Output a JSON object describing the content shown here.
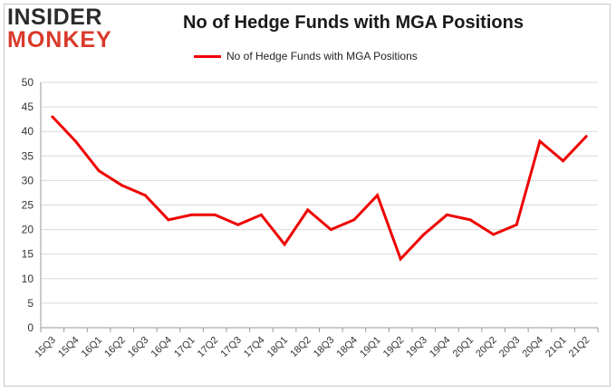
{
  "logo": {
    "line1": "INSIDER",
    "line2": "MONKEY"
  },
  "chart_data": {
    "type": "line",
    "title": "No of Hedge Funds with MGA Positions",
    "xlabel": "",
    "ylabel": "",
    "categories": [
      "15Q3",
      "15Q4",
      "16Q1",
      "16Q2",
      "16Q3",
      "16Q4",
      "17Q1",
      "17Q2",
      "17Q3",
      "17Q4",
      "18Q1",
      "18Q2",
      "18Q3",
      "18Q4",
      "19Q1",
      "19Q2",
      "19Q3",
      "19Q4",
      "20Q1",
      "20Q2",
      "20Q3",
      "20Q4",
      "21Q1",
      "21Q2"
    ],
    "series": [
      {
        "name": "No of Hedge Funds with MGA Positions",
        "color": "#ee0000",
        "values": [
          43,
          38,
          32,
          29,
          27,
          22,
          23,
          23,
          21,
          23,
          17,
          24,
          20,
          22,
          27,
          14,
          19,
          23,
          22,
          19,
          21,
          38,
          34,
          39
        ]
      }
    ],
    "ylim": [
      0,
      50
    ],
    "yticks": [
      0,
      5,
      10,
      15,
      20,
      25,
      30,
      35,
      40,
      45,
      50
    ],
    "grid": true,
    "legend": "top-center"
  }
}
